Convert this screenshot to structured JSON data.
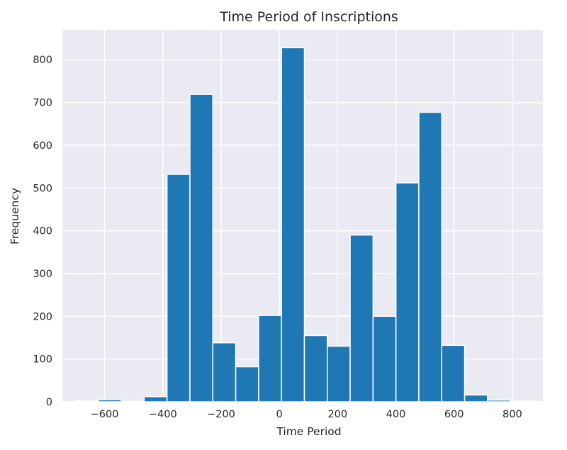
{
  "chart_data": {
    "type": "bar",
    "subtype": "histogram",
    "title": "Time Period of Inscriptions",
    "xlabel": "Time Period",
    "ylabel": "Frequency",
    "xlim": [
      -745,
      905
    ],
    "ylim": [
      0,
      870
    ],
    "xticks": [
      -600,
      -400,
      -200,
      0,
      200,
      400,
      600,
      800
    ],
    "xtick_labels": [
      "−600",
      "−400",
      "−200",
      "0",
      "200",
      "400",
      "600",
      "800"
    ],
    "yticks": [
      0,
      100,
      200,
      300,
      400,
      500,
      600,
      700,
      800
    ],
    "ytick_labels": [
      "0",
      "100",
      "200",
      "300",
      "400",
      "500",
      "600",
      "700",
      "800"
    ],
    "grid": true,
    "bin_start": -700,
    "bin_width": 78.6,
    "counts": [
      2,
      5,
      1,
      12,
      532,
      719,
      138,
      82,
      202,
      828,
      155,
      130,
      390,
      200,
      512,
      677,
      132,
      16,
      4,
      2
    ],
    "colors": {
      "bar": "#1f77b4",
      "bar_edge": "#ffffff",
      "background": "#eaeaf2",
      "grid": "#ffffff",
      "text": "#262626"
    }
  }
}
